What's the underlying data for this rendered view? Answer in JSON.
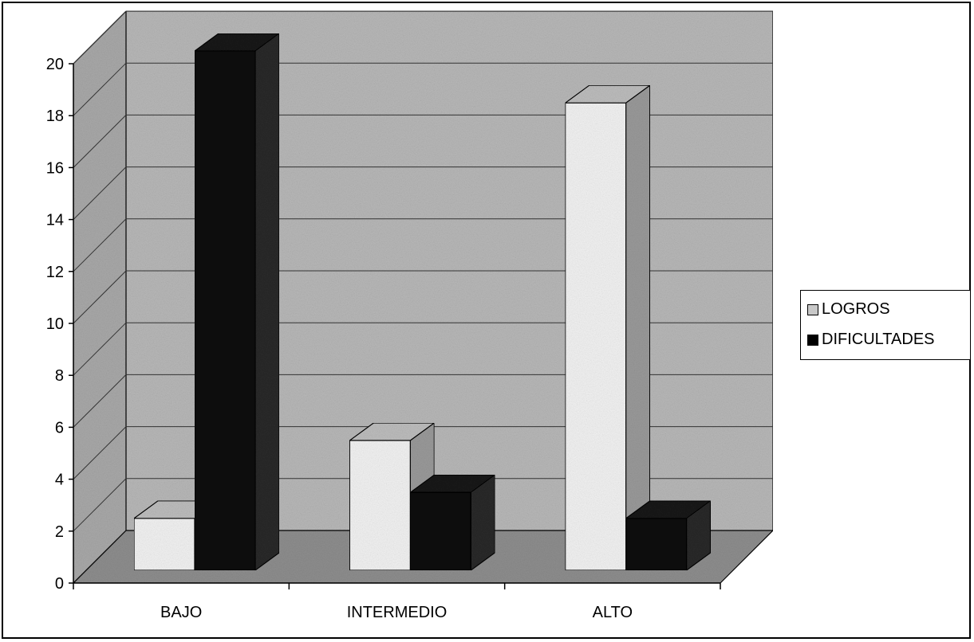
{
  "chart_data": {
    "type": "bar",
    "categories": [
      "BAJO",
      "INTERMEDIO",
      "ALTO"
    ],
    "series": [
      {
        "name": "LOGROS",
        "values": [
          2,
          5,
          18
        ]
      },
      {
        "name": "DIFICULTADES",
        "values": [
          20,
          3,
          2
        ]
      }
    ],
    "ylim": [
      0,
      20
    ],
    "yticks": [
      "0",
      "2",
      "4",
      "6",
      "8",
      "10",
      "12",
      "14",
      "16",
      "18",
      "20"
    ],
    "grid": true,
    "legend_position": "right",
    "title": "",
    "xlabel": "",
    "ylabel": "",
    "colors": {
      "logros_front": "#f2f2f2",
      "logros_top": "#bdbdbd",
      "dificultades_front": "#0a0a0a",
      "dificultades_top": "#1a1a1a",
      "wall": "#b8b8b8",
      "floor": "#8e8e8e"
    }
  },
  "legend": {
    "items": [
      {
        "label": "LOGROS",
        "color": "#c8c8c8"
      },
      {
        "label": "DIFICULTADES",
        "color": "#000000"
      }
    ]
  }
}
